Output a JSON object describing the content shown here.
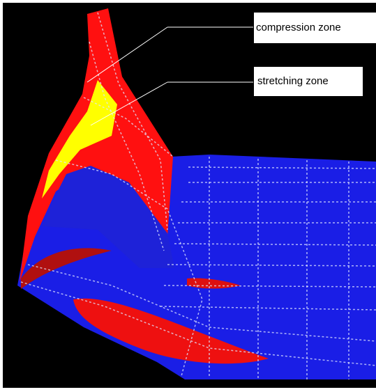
{
  "annotations": [
    {
      "label": "compression zone"
    },
    {
      "label": "stretching zone"
    }
  ]
}
